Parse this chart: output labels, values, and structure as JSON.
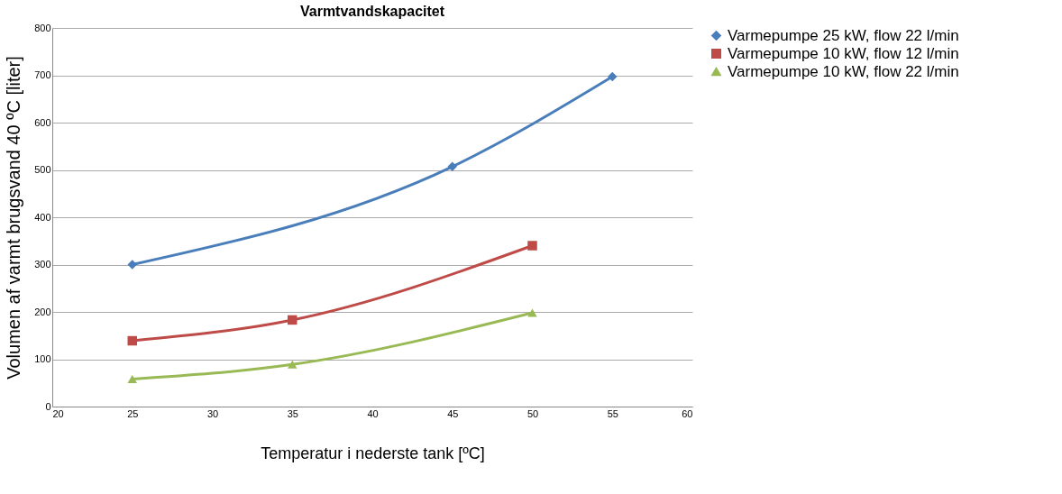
{
  "chart_data": {
    "type": "line",
    "title": "Varmtvandskapacitet",
    "xlabel": "Temperatur i nederste tank [ºC]",
    "ylabel": "Volumen af varmt brugsvand 40 ºC [liter]",
    "xlim": [
      20,
      60
    ],
    "xticks": [
      20,
      25,
      30,
      35,
      40,
      45,
      50,
      55,
      60
    ],
    "ylim": [
      0,
      800
    ],
    "yticks": [
      0,
      100,
      200,
      300,
      400,
      500,
      600,
      700,
      800
    ],
    "grid": "y",
    "legend": "right",
    "line_style": "solid",
    "series": [
      {
        "name": "Varmepumpe 25 kW, flow 22 l/min",
        "color": "#4a7ebb",
        "marker": "diamond",
        "x": [
          25,
          45,
          55
        ],
        "values": [
          300,
          507,
          697
        ]
      },
      {
        "name": "Varmepumpe 10 kW, flow 12 l/min",
        "color": "#be4b48",
        "marker": "square",
        "x": [
          25,
          35,
          50
        ],
        "values": [
          139,
          183,
          340
        ]
      },
      {
        "name": "Varmepumpe 10 kW, flow 22 l/min",
        "color": "#98b954",
        "marker": "triangle",
        "x": [
          25,
          35,
          50
        ],
        "values": [
          58,
          89,
          198
        ]
      }
    ]
  }
}
